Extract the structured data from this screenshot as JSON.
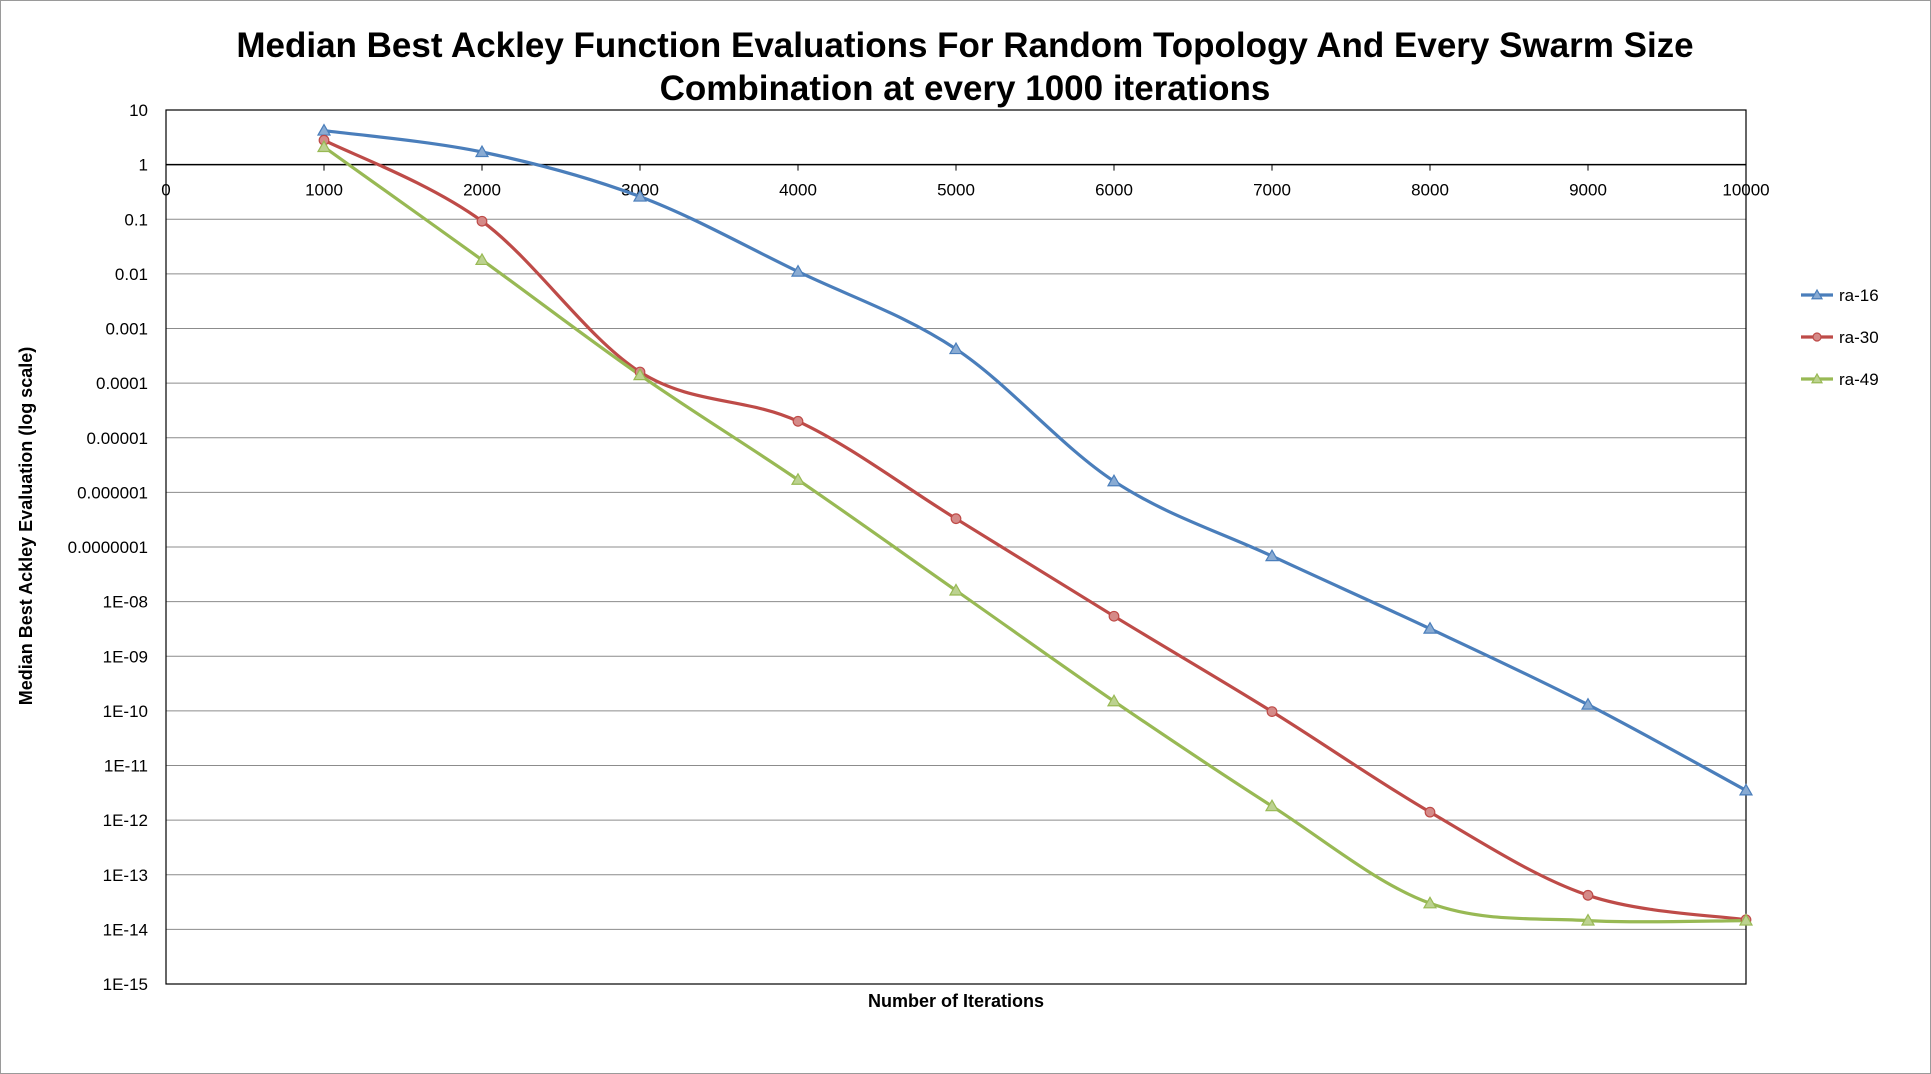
{
  "chart_data": {
    "type": "line",
    "title_lines": [
      "Median Best Ackley Function Evaluations For Random Topology And Every Swarm Size",
      "Combination at every 1000 iterations"
    ],
    "xlabel": "Number of Iterations",
    "ylabel": "Median Best Ackley Evaluation (log scale)",
    "x_ticks": [
      "0",
      "1000",
      "2000",
      "3000",
      "4000",
      "5000",
      "6000",
      "7000",
      "8000",
      "9000",
      "10000"
    ],
    "y_ticks": [
      "10",
      "1",
      "0.1",
      "0.01",
      "0.001",
      "0.0001",
      "0.00001",
      "0.000001",
      "0.0000001",
      "1E-08",
      "1E-09",
      "1E-10",
      "1E-11",
      "1E-12",
      "1E-13",
      "1E-14",
      "1E-15"
    ],
    "y_scale": "log",
    "ylim": [
      1e-15,
      10
    ],
    "xlim": [
      0,
      10000
    ],
    "grid": "horizontal",
    "legend_position": "right",
    "x": [
      1000,
      2000,
      3000,
      4000,
      5000,
      6000,
      7000,
      8000,
      9000,
      10000
    ],
    "series": [
      {
        "name": "ra-16",
        "color": "#4a7ebb",
        "marker": "triangle",
        "values": [
          4.2,
          1.7,
          0.26,
          0.011,
          0.00042,
          1.6e-06,
          6.8e-08,
          3.2e-09,
          1.3e-10,
          3.5e-12
        ]
      },
      {
        "name": "ra-30",
        "color": "#be4b48",
        "marker": "circle",
        "values": [
          2.8,
          0.092,
          0.00016,
          2e-05,
          3.3e-07,
          5.4e-09,
          9.7e-11,
          1.4e-12,
          4.2e-14,
          1.5e-14
        ]
      },
      {
        "name": "ra-49",
        "color": "#98b954",
        "marker": "triangle",
        "values": [
          2.1,
          0.018,
          0.00014,
          1.7e-06,
          1.6e-08,
          1.5e-10,
          1.8e-12,
          3e-14,
          1.45e-14,
          1.45e-14
        ]
      }
    ]
  }
}
